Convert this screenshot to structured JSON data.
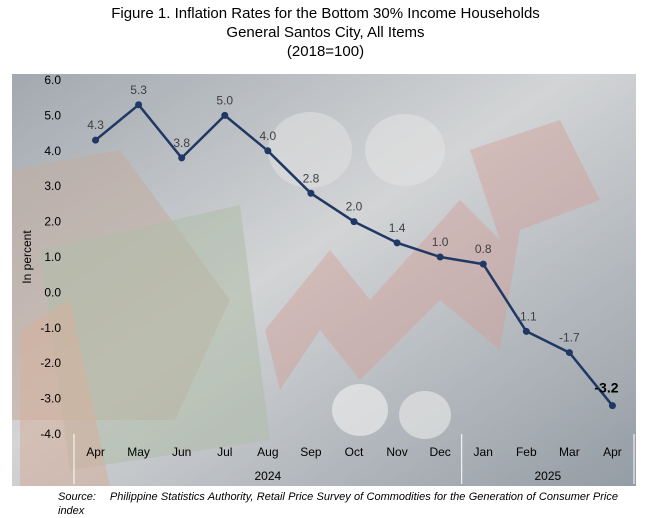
{
  "title": {
    "line1": "Figure 1. Inflation Rates for the Bottom 30% Income Households",
    "line2": "General Santos City, All Items",
    "line3": "(2018=100)"
  },
  "source": {
    "label": "Source:",
    "text": "Philippine Statistics Authority, Retail Price Survey of Commodities for the Generation of Consumer Price index"
  },
  "chart_data": {
    "type": "line",
    "ylabel": "In percent",
    "ylim": [
      -4.0,
      6.0
    ],
    "yticks": [
      "6.0",
      "5.0",
      "4.0",
      "3.0",
      "2.0",
      "1.0",
      "0.0",
      "-1.0",
      "-2.0",
      "-3.0",
      "-4.0"
    ],
    "categories": [
      "Apr",
      "May",
      "Jun",
      "Jul",
      "Aug",
      "Sep",
      "Oct",
      "Nov",
      "Dec",
      "Jan",
      "Feb",
      "Mar",
      "Apr"
    ],
    "year_groups": [
      {
        "label": "2024",
        "start": 0,
        "end": 8
      },
      {
        "label": "2025",
        "start": 9,
        "end": 12
      }
    ],
    "series": [
      {
        "values": [
          4.3,
          5.3,
          3.8,
          5.0,
          4.0,
          2.8,
          2.0,
          1.4,
          1.0,
          0.8,
          -1.1,
          -1.7,
          -3.2
        ],
        "labels": [
          "4.3",
          "5.3",
          "3.8",
          "5.0",
          "4.0",
          "2.8",
          "2.0",
          "1.4",
          "1.0",
          "0.8",
          "-1.1",
          "-1.7",
          "-3.2"
        ],
        "color": "#1f3864"
      }
    ],
    "grid": false,
    "legend": "none"
  }
}
